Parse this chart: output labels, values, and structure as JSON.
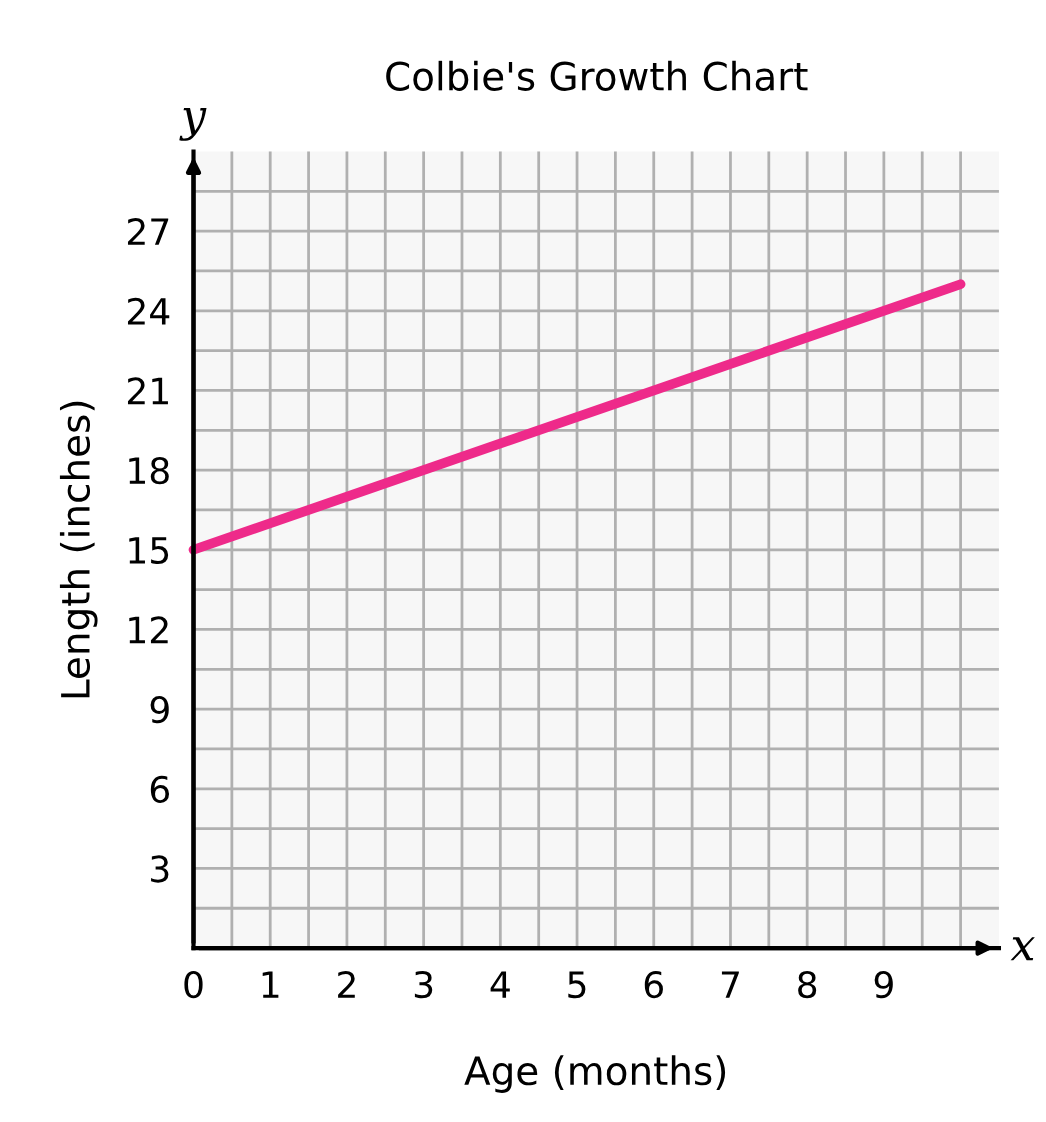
{
  "chart_data": {
    "type": "line",
    "title": "Colbie's Growth Chart",
    "xlabel": "Age (months)",
    "ylabel": "Length (inches)",
    "annotations": [
      "x",
      "y"
    ],
    "x": [
      0,
      10
    ],
    "series": [
      {
        "color": "#ee2a8a",
        "values": [
          15,
          25
        ]
      }
    ],
    "xlim": [
      0,
      10.5
    ],
    "ylim": [
      0,
      30
    ],
    "xticks": [
      0,
      {
        "value": 0.5,
        "label": null
      },
      1,
      {
        "value": 1.5,
        "label": null
      },
      2,
      {
        "value": 2.5,
        "label": null
      },
      3,
      {
        "value": 3.5,
        "label": null
      },
      4,
      {
        "value": 4.5,
        "label": null
      },
      5,
      {
        "value": 5.5,
        "label": null
      },
      6,
      {
        "value": 6.5,
        "label": null
      },
      7,
      {
        "value": 7.5,
        "label": null
      },
      8,
      {
        "value": 8.5,
        "label": null
      },
      9,
      {
        "value": 9.5,
        "label": null
      },
      {
        "value": 10,
        "label": null
      }
    ],
    "yticks": [
      {
        "value": 1.5,
        "label": null
      },
      3,
      {
        "value": 4.5,
        "label": null
      },
      6,
      {
        "value": 7.5,
        "label": null
      },
      9,
      {
        "value": 10.5,
        "label": null
      },
      12,
      {
        "value": 13.5,
        "label": null
      },
      15,
      {
        "value": 16.5,
        "label": null
      },
      18,
      {
        "value": 19.5,
        "label": null
      },
      21,
      {
        "value": 22.5,
        "label": null
      },
      24,
      {
        "value": 25.5,
        "label": null
      },
      27,
      {
        "value": 28.5,
        "label": null
      }
    ],
    "grid": true,
    "marker": "none",
    "line_style": "solid"
  }
}
